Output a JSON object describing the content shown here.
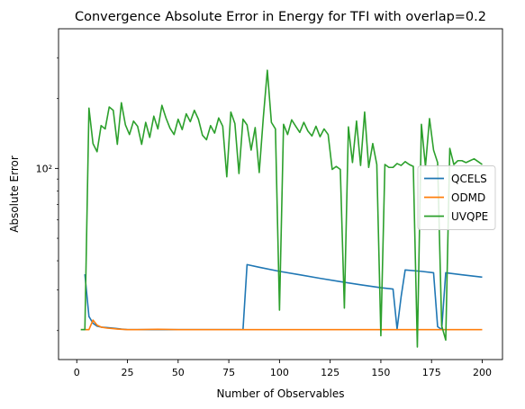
{
  "chart_data": {
    "type": "line",
    "title": "Convergence Absolute Error in Energy for TFI with overlap=0.2",
    "xlabel": "Number of Observables",
    "ylabel": "Absolute Error",
    "xlim": [
      -9,
      210
    ],
    "ylim": [
      15.0,
      400
    ],
    "yscale": "log",
    "xticks": [
      0,
      25,
      50,
      75,
      100,
      125,
      150,
      175,
      200
    ],
    "xtick_labels": [
      "0",
      "25",
      "50",
      "75",
      "100",
      "125",
      "150",
      "175",
      "200"
    ],
    "yticks_major": [
      100
    ],
    "ytick_labels": [
      "10²"
    ],
    "yticks_minor": [
      20,
      30,
      40,
      50,
      60,
      70,
      80,
      90,
      200,
      300
    ],
    "grid": false,
    "legend_position": "center-right",
    "series": [
      {
        "name": "QCELS",
        "color": "#1f77b4",
        "x": [
          4,
          6,
          8,
          10,
          12,
          15,
          18,
          20,
          22,
          25,
          30,
          35,
          40,
          45,
          50,
          60,
          70,
          80,
          82,
          84,
          90,
          100,
          110,
          120,
          130,
          140,
          150,
          156,
          158,
          160,
          162,
          170,
          176,
          178,
          180,
          182,
          190,
          200
        ],
        "y": [
          35.0,
          23.0,
          21.5,
          20.9,
          20.7,
          20.6,
          20.5,
          20.4,
          20.3,
          20.2,
          20.2,
          20.2,
          20.2,
          20.2,
          20.2,
          20.2,
          20.2,
          20.2,
          20.2,
          38.5,
          37.5,
          36.0,
          34.8,
          33.6,
          32.5,
          31.5,
          30.6,
          30.2,
          20.3,
          28.0,
          36.5,
          36.0,
          35.5,
          20.8,
          20.2,
          35.5,
          34.8,
          34.0
        ]
      },
      {
        "name": "ODMD",
        "color": "#ff7f0e",
        "x": [
          2,
          6,
          8,
          10,
          12,
          15,
          18,
          20,
          25,
          30,
          40,
          50,
          60,
          70,
          80,
          90,
          100,
          110,
          120,
          130,
          140,
          150,
          160,
          170,
          180,
          190,
          200
        ],
        "y": [
          20.2,
          20.2,
          22.2,
          21.1,
          20.7,
          20.5,
          20.4,
          20.3,
          20.2,
          20.2,
          20.25,
          20.2,
          20.2,
          20.2,
          20.2,
          20.2,
          20.2,
          20.2,
          20.2,
          20.2,
          20.2,
          20.2,
          20.2,
          20.2,
          20.2,
          20.2,
          20.2
        ]
      },
      {
        "name": "UVQPE",
        "color": "#2ca02c",
        "x": [
          2,
          4,
          6,
          8,
          10,
          12,
          14,
          16,
          18,
          20,
          22,
          24,
          26,
          28,
          30,
          32,
          34,
          36,
          38,
          40,
          42,
          44,
          46,
          48,
          50,
          52,
          54,
          56,
          58,
          60,
          62,
          64,
          66,
          68,
          70,
          72,
          74,
          76,
          78,
          80,
          82,
          84,
          86,
          88,
          90,
          92,
          94,
          96,
          98,
          100,
          102,
          104,
          106,
          108,
          110,
          112,
          114,
          116,
          118,
          120,
          122,
          124,
          126,
          128,
          130,
          132,
          134,
          136,
          138,
          140,
          142,
          144,
          146,
          148,
          150,
          152,
          154,
          156,
          158,
          160,
          162,
          164,
          166,
          168,
          170,
          172,
          174,
          176,
          178,
          180,
          182,
          184,
          186,
          188,
          190,
          192,
          194,
          196,
          198,
          200
        ],
        "y": [
          20.2,
          20.2,
          182,
          128,
          118,
          153,
          148,
          184,
          178,
          127,
          192,
          154,
          140,
          160,
          152,
          127,
          158,
          136,
          168,
          148,
          187,
          165,
          149,
          140,
          163,
          147,
          172,
          159,
          178,
          163,
          139,
          133,
          153,
          142,
          165,
          152,
          92,
          175,
          156,
          95,
          163,
          154,
          120,
          150,
          96,
          165,
          265,
          158,
          148,
          24.5,
          155,
          140,
          162,
          152,
          143,
          158,
          145,
          138,
          152,
          137,
          148,
          140,
          99,
          102,
          99,
          25.0,
          151,
          106,
          160,
          103,
          175,
          101,
          128,
          104,
          19.0,
          104,
          101,
          101,
          105,
          103,
          107,
          104,
          102,
          17.0,
          155,
          102,
          164,
          120,
          106,
          21.0,
          18.2,
          122,
          104,
          108,
          108,
          106,
          108,
          110,
          107,
          104
        ]
      }
    ]
  }
}
